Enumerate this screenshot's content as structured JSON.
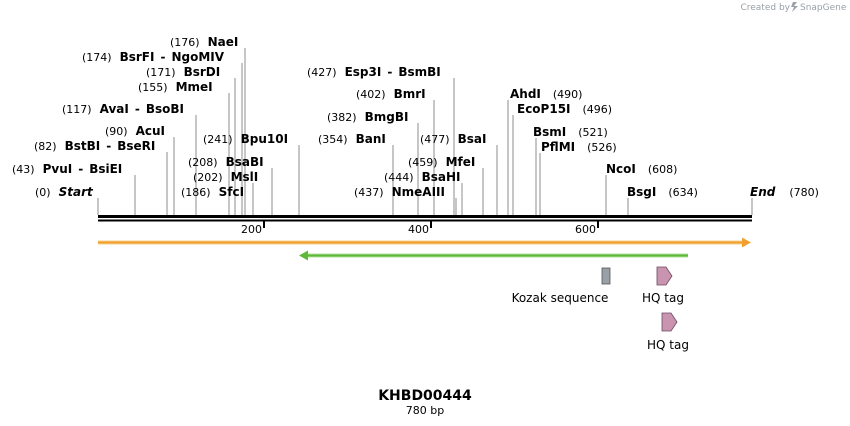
{
  "header": {
    "credit_prefix": "Created by",
    "credit_brand": "SnapGene"
  },
  "map": {
    "name": "KHBD00444",
    "length_label": "780 bp",
    "length_bp": 780,
    "axis_ticks": [
      "200",
      "400",
      "600"
    ],
    "sites": [
      {
        "pos": "(0)",
        "name": "Start",
        "bp": 0,
        "italic": true
      },
      {
        "pos": "(43)",
        "name": "PvuI",
        "bp": 43,
        "alt": "BsiEI"
      },
      {
        "pos": "(82)",
        "name": "BstBI",
        "bp": 82,
        "alt": "BseRI"
      },
      {
        "pos": "(90)",
        "name": "AcuI",
        "bp": 90
      },
      {
        "pos": "(117)",
        "name": "AvaI",
        "bp": 117,
        "alt": "BsoBI"
      },
      {
        "pos": "(155)",
        "name": "MmeI",
        "bp": 155
      },
      {
        "pos": "(171)",
        "name": "BsrDI",
        "bp": 171
      },
      {
        "pos": "(174)",
        "name": "BsrFI",
        "bp": 174,
        "alt": "NgoMIV"
      },
      {
        "pos": "(176)",
        "name": "NaeI",
        "bp": 176
      },
      {
        "pos": "(186)",
        "name": "SfcI",
        "bp": 186
      },
      {
        "pos": "(202)",
        "name": "MslI",
        "bp": 202
      },
      {
        "pos": "(208)",
        "name": "BsaBI",
        "bp": 208
      },
      {
        "pos": "(241)",
        "name": "Bpu10I",
        "bp": 241
      },
      {
        "pos": "(354)",
        "name": "BanI",
        "bp": 354
      },
      {
        "pos": "(382)",
        "name": "BmgBI",
        "bp": 382
      },
      {
        "pos": "(402)",
        "name": "BmrI",
        "bp": 402
      },
      {
        "pos": "(427)",
        "name": "Esp3I",
        "bp": 427,
        "alt": "BsmBI"
      },
      {
        "pos": "(437)",
        "name": "NmeAIII",
        "bp": 437
      },
      {
        "pos": "(444)",
        "name": "BsaHI",
        "bp": 444
      },
      {
        "pos": "(459)",
        "name": "MfeI",
        "bp": 459
      },
      {
        "pos": "(477)",
        "name": "BsaI",
        "bp": 477
      },
      {
        "pos": "(490)",
        "name": "AhdI",
        "bp": 490
      },
      {
        "pos": "(496)",
        "name": "EcoP15I",
        "bp": 496
      },
      {
        "pos": "(521)",
        "name": "BsmI",
        "bp": 521
      },
      {
        "pos": "(526)",
        "name": "PflMI",
        "bp": 526
      },
      {
        "pos": "(608)",
        "name": "NcoI",
        "bp": 608
      },
      {
        "pos": "(634)",
        "name": "BsgI",
        "bp": 634
      },
      {
        "pos": "(780)",
        "name": "End",
        "bp": 780,
        "italic": true
      }
    ],
    "features": [
      {
        "label": "Kozak sequence",
        "color": "#9aa0a8"
      },
      {
        "label": "HQ tag",
        "color": "#c994b0"
      },
      {
        "label": "HQ tag",
        "color": "#c994b0"
      }
    ],
    "colors": {
      "orange_arrow": "#f0a030",
      "green_arrow": "#6cc04a",
      "backbone": "#000000",
      "site_line": "#808080"
    }
  }
}
